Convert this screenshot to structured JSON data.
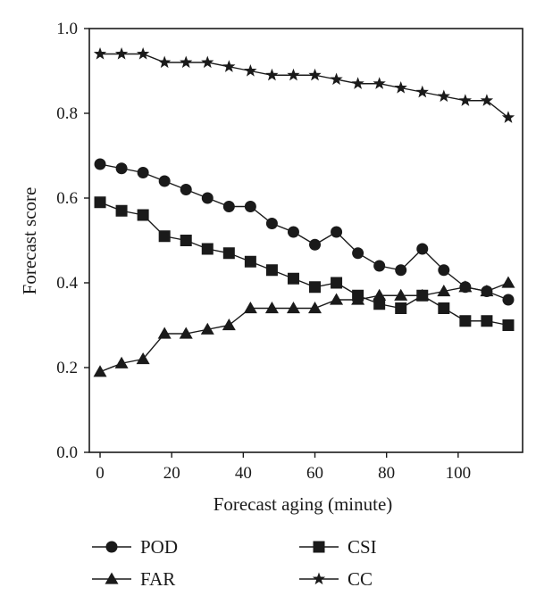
{
  "chart_data": {
    "type": "line",
    "title": "",
    "xlabel": "Forecast aging (minute)",
    "ylabel": "Forecast score",
    "xlim": [
      -3,
      118
    ],
    "ylim": [
      0.0,
      1.0
    ],
    "x_ticks": [
      0,
      20,
      40,
      60,
      80,
      100
    ],
    "x_tick_labels": [
      "0",
      "20",
      "40",
      "60",
      "80",
      "100"
    ],
    "y_ticks": [
      0.0,
      0.2,
      0.4,
      0.6,
      0.8,
      1.0
    ],
    "y_tick_labels": [
      "0.0",
      "0.2",
      "0.4",
      "0.6",
      "0.8",
      "1.0"
    ],
    "grid": false,
    "legend_position": "bottom",
    "x": [
      0,
      6,
      12,
      18,
      24,
      30,
      36,
      42,
      48,
      54,
      60,
      66,
      72,
      78,
      84,
      90,
      96,
      102,
      108,
      114
    ],
    "series": [
      {
        "name": "POD",
        "marker": "circle",
        "values": [
          0.68,
          0.67,
          0.66,
          0.64,
          0.62,
          0.6,
          0.58,
          0.58,
          0.54,
          0.52,
          0.49,
          0.52,
          0.47,
          0.44,
          0.43,
          0.48,
          0.43,
          0.39,
          0.38,
          0.36
        ]
      },
      {
        "name": "CSI",
        "marker": "square",
        "values": [
          0.59,
          0.57,
          0.56,
          0.51,
          0.5,
          0.48,
          0.47,
          0.45,
          0.43,
          0.41,
          0.39,
          0.4,
          0.37,
          0.35,
          0.34,
          0.37,
          0.34,
          0.31,
          0.31,
          0.3
        ]
      },
      {
        "name": "FAR",
        "marker": "triangle",
        "values": [
          0.19,
          0.21,
          0.22,
          0.28,
          0.28,
          0.29,
          0.3,
          0.34,
          0.34,
          0.34,
          0.34,
          0.36,
          0.36,
          0.37,
          0.37,
          0.37,
          0.38,
          0.39,
          0.38,
          0.4
        ]
      },
      {
        "name": "CC",
        "marker": "star",
        "values": [
          0.94,
          0.94,
          0.94,
          0.92,
          0.92,
          0.92,
          0.91,
          0.9,
          0.89,
          0.89,
          0.89,
          0.88,
          0.87,
          0.87,
          0.86,
          0.85,
          0.84,
          0.83,
          0.83,
          0.79
        ]
      }
    ],
    "legend": [
      {
        "name": "POD",
        "marker": "circle",
        "row": 0,
        "col": 0
      },
      {
        "name": "CSI",
        "marker": "square",
        "row": 0,
        "col": 1
      },
      {
        "name": "FAR",
        "marker": "triangle",
        "row": 1,
        "col": 0
      },
      {
        "name": "CC",
        "marker": "star",
        "row": 1,
        "col": 1
      }
    ],
    "colors": {
      "line": "#1a1a1a",
      "marker": "#1a1a1a",
      "axes": "#1a1a1a",
      "background": "#ffffff"
    }
  }
}
